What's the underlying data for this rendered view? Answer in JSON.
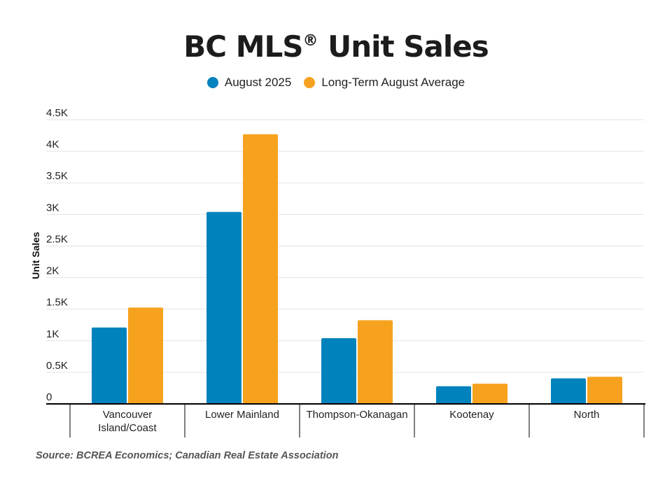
{
  "title_main": "BC MLS",
  "title_reg": "®",
  "title_rest": " Unit Sales",
  "source": "Source: BCREA Economics; Canadian Real Estate Association",
  "colors": {
    "series1": "#0082BD",
    "series2": "#F7A21E",
    "grid": "#e3e3e3",
    "axis": "#000000"
  },
  "chart_data": {
    "type": "bar",
    "title": "BC MLS® Unit Sales",
    "xlabel": "",
    "ylabel": "Unit Sales",
    "ylim": [
      0,
      4500
    ],
    "yticks": [
      0,
      500,
      1000,
      1500,
      2000,
      2500,
      3000,
      3500,
      4000,
      4500
    ],
    "ytick_labels": [
      "0",
      "0.5K",
      "1K",
      "1.5K",
      "2K",
      "2.5K",
      "3K",
      "3.5K",
      "4K",
      "4.5K"
    ],
    "grid": true,
    "legend_position": "top-center",
    "categories": [
      [
        "Vancouver",
        "Island/Coast"
      ],
      [
        "Lower Mainland"
      ],
      [
        "Thompson-Okanagan"
      ],
      [
        "Kootenay"
      ],
      [
        "North"
      ]
    ],
    "series": [
      {
        "name": "August 2025",
        "values": [
          1210,
          3040,
          1040,
          280,
          405
        ]
      },
      {
        "name": "Long-Term August Average",
        "values": [
          1525,
          4270,
          1325,
          320,
          430
        ]
      }
    ]
  }
}
